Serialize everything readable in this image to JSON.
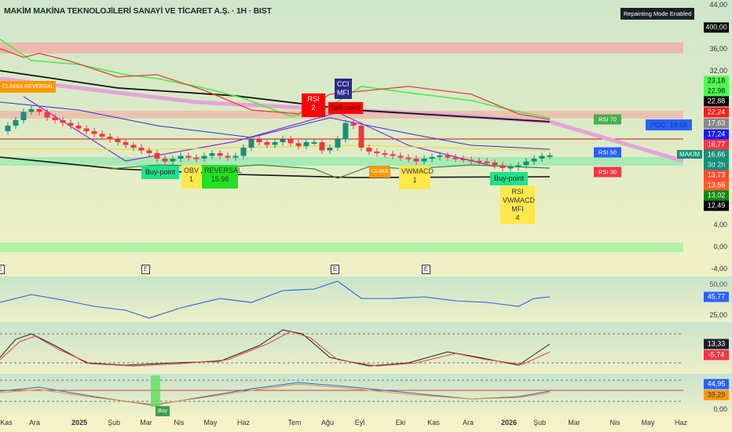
{
  "header": {
    "title": "MAKİM MAKİNA TEKNOLOJİLERİ SANAYİ VE TİCARET A.Ş. · 1H · BIST",
    "repainting_badge": "Repainting Mode Enabled"
  },
  "price_axis": {
    "ticks": [
      {
        "label": "44,00",
        "v": 44
      },
      {
        "label": "36,00",
        "v": 36
      },
      {
        "label": "32,00",
        "v": 32
      },
      {
        "label": "4,00",
        "v": 4
      },
      {
        "label": "0,00",
        "v": 0
      },
      {
        "label": "-4,00",
        "v": -4
      }
    ],
    "tags": [
      {
        "label": "400,00",
        "bg": "#000000",
        "fg": "#ffffff"
      },
      {
        "label": "23,18",
        "bg": "#4cff4c",
        "fg": "#111111"
      },
      {
        "label": "22,98",
        "bg": "#4cff4c",
        "fg": "#111111"
      },
      {
        "label": "22,88",
        "bg": "#000000",
        "fg": "#ffffff"
      },
      {
        "label": "22,24",
        "bg": "#ff1a1a",
        "fg": "#ffffff"
      },
      {
        "label": "17,63",
        "bg": "#888888",
        "fg": "#ffffff"
      },
      {
        "label": "17,24",
        "bg": "#1a1aff",
        "fg": "#ffffff"
      },
      {
        "label": "16,77",
        "bg": "#f23645",
        "fg": "#ffffff"
      },
      {
        "label": "16,66",
        "bg": "#15907a",
        "fg": "#ffffff"
      },
      {
        "label": "3d 2h",
        "bg": "#15907a",
        "fg": "#cfeee6"
      },
      {
        "label": "13,73",
        "bg": "#ff4a2a",
        "fg": "#ffffff"
      },
      {
        "label": "13,56",
        "bg": "#ff5a30",
        "fg": "#ffffff"
      },
      {
        "label": "13,02",
        "bg": "#0a8a0a",
        "fg": "#ffffff"
      },
      {
        "label": "12,49",
        "bg": "#000000",
        "fg": "#ffffff"
      }
    ]
  },
  "symbol_tag": "MAKIM",
  "poc_label": "POC: 19.68",
  "rsi_levels": {
    "r70": "RSI 70",
    "r50": "RSI 50",
    "r30": "RSI 30"
  },
  "signals": {
    "climax_reversal": "CLIMAX REVERSAL",
    "climax_short": "CLIMA",
    "sell_point": "Sell-point",
    "rsi_short": "RSI",
    "rsi_num": "2",
    "cci": "CCI",
    "mfi": "MFI",
    "buy_point": "Buy-point",
    "obv": "OBV",
    "obv_n": "1",
    "reversal": "REVERSAL",
    "reversal_v": "15.98",
    "vwmacd": "VWMACD",
    "vwmacd_n": "1",
    "buy_point2": "Buy-point",
    "multi": "RSI",
    "multi2": "VWMACD",
    "multi3": "MFI",
    "multi_n": "4",
    "buy_bottom": "Buy"
  },
  "events": [
    "E",
    "E",
    "E",
    "E"
  ],
  "rsi_panel": {
    "value": "45,77",
    "tick_50": "50,00",
    "tick_25": "25,00"
  },
  "stoch_panel": {
    "v1": "13,33",
    "v2": "-5,74"
  },
  "bottom_panel": {
    "v1": "44,95",
    "v2": "39,29",
    "tick0": "0,00"
  },
  "x_axis": [
    "Kas",
    "Ara",
    "2025",
    "Şub",
    "Mar",
    "Nis",
    "May",
    "Haz",
    "Tem",
    "Ağu",
    "Eyl",
    "Eki",
    "Kas",
    "Ara",
    "2026",
    "Şub",
    "Mar",
    "Nis",
    "May",
    "Haz"
  ],
  "colors": {
    "up": "#15907a",
    "down": "#f23645"
  },
  "chart_data": {
    "type": "candlestick",
    "closes": [
      21,
      22,
      23,
      24.5,
      25,
      24.5,
      23.5,
      23,
      22.5,
      22,
      21.5,
      21,
      20.5,
      20,
      19.5,
      19,
      18.5,
      18,
      17.5,
      17,
      16,
      15.5,
      16,
      16.5,
      16.2,
      16,
      16.5,
      17,
      16.5,
      16.2,
      16.5,
      18,
      19.5,
      19,
      18.5,
      19,
      19.5,
      18.8,
      18.3,
      19,
      19,
      17.5,
      18,
      19.5,
      22.5,
      22,
      18,
      17.3,
      17,
      16.8,
      16.5,
      16.2,
      16,
      15.5,
      16,
      16.3,
      16.6,
      16.2,
      16,
      15.8,
      15.6,
      15.5,
      15.3,
      14.8,
      14.3,
      14.5,
      14.8,
      15.5,
      16,
      16.5,
      16.6
    ]
  }
}
